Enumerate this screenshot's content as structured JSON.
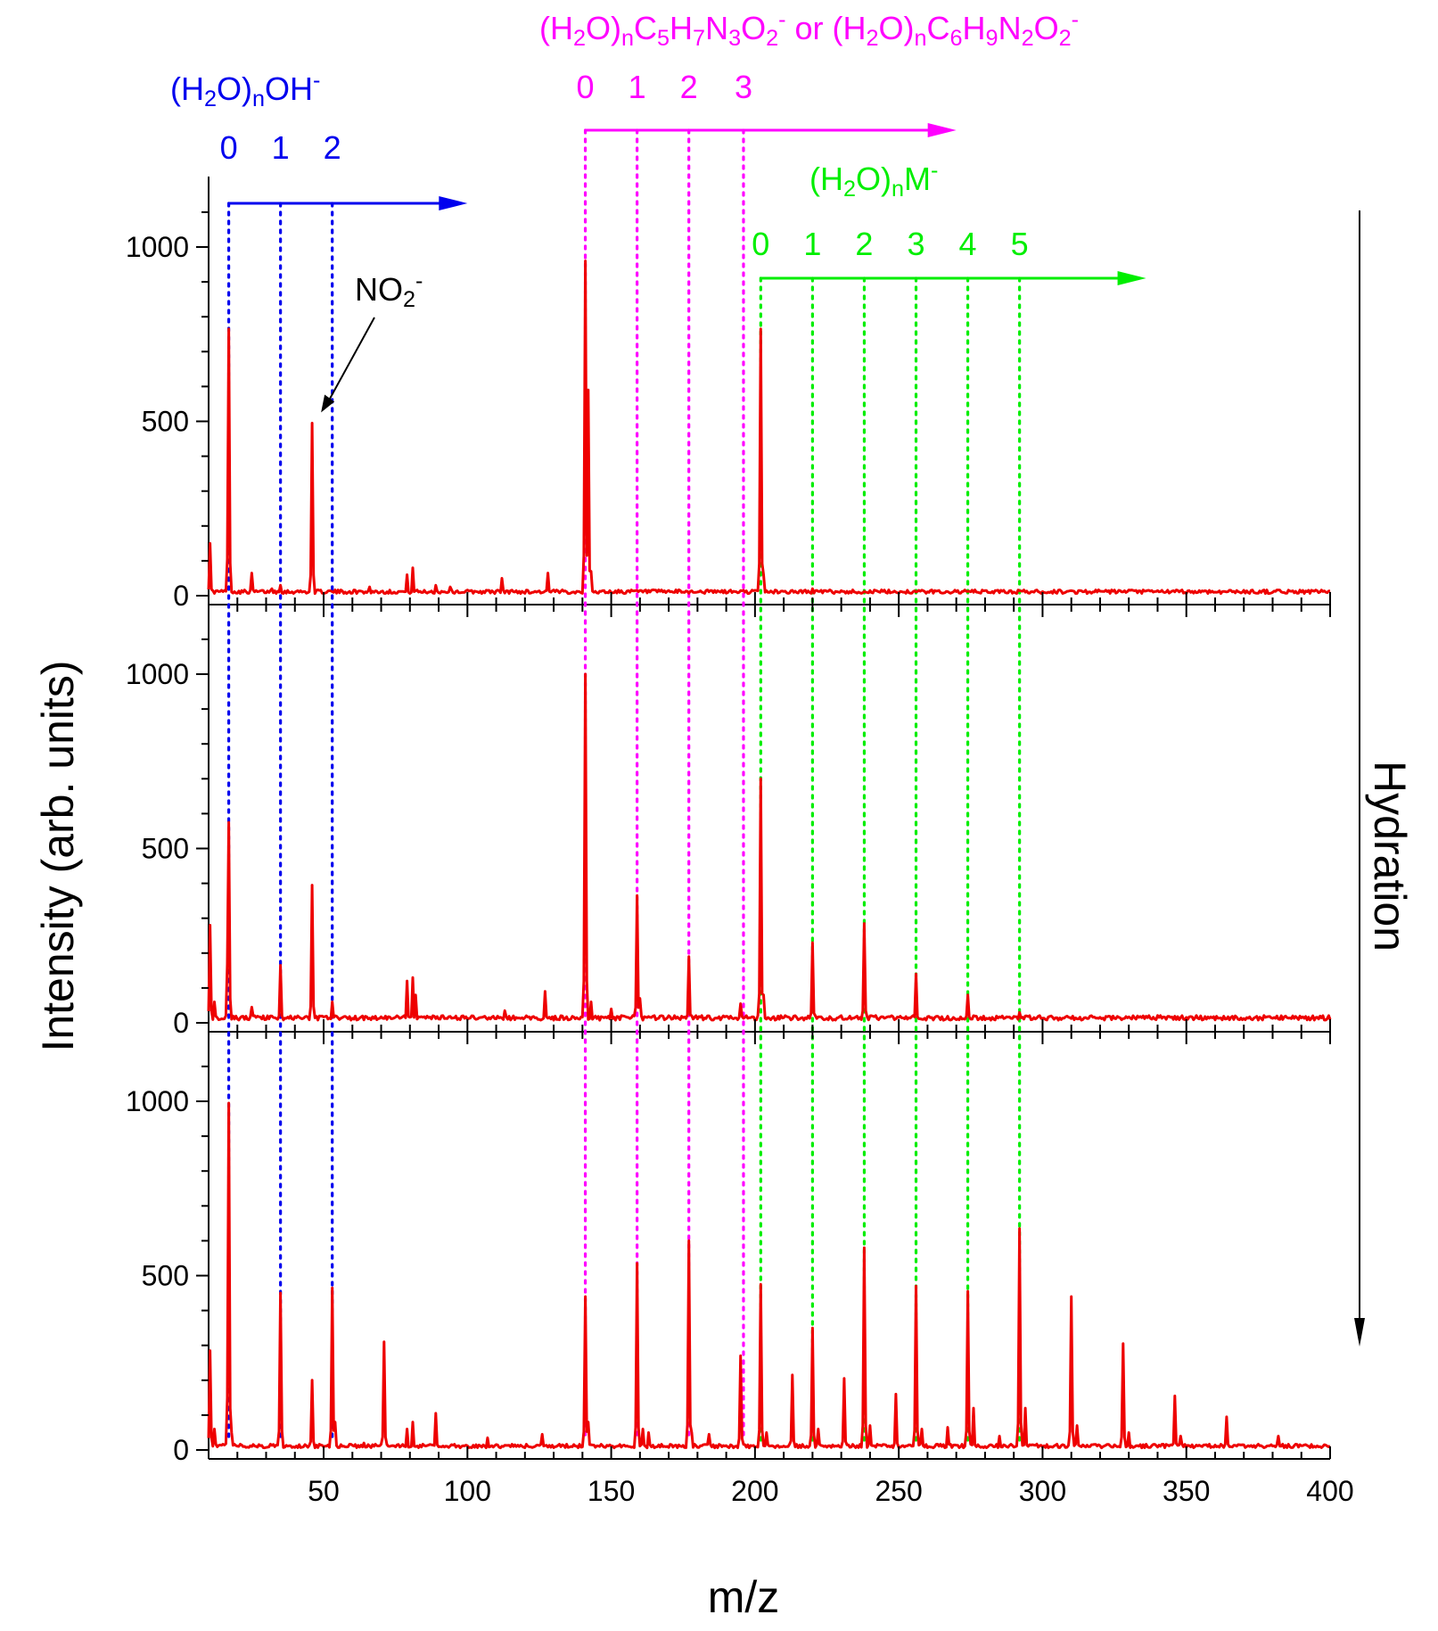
{
  "chart_data": {
    "type": "line",
    "xlabel": "m/z",
    "ylabel": "Intensity (arb. units)",
    "xlim": [
      10,
      400
    ],
    "ylim": [
      0,
      1200
    ],
    "xticks": [
      50,
      100,
      150,
      200,
      250,
      300,
      350,
      400
    ],
    "yticks": [
      0,
      500,
      1000
    ],
    "side_label": "Hydration",
    "panels": [
      {
        "name": "top",
        "baseline": 12,
        "peaks": [
          [
            10.5,
            150
          ],
          [
            16.5,
            105
          ],
          [
            17,
            765
          ],
          [
            25,
            65
          ],
          [
            32,
            20
          ],
          [
            35,
            30
          ],
          [
            46,
            495
          ],
          [
            66,
            25
          ],
          [
            79,
            60
          ],
          [
            81,
            80
          ],
          [
            89,
            30
          ],
          [
            94,
            25
          ],
          [
            112,
            50
          ],
          [
            128,
            65
          ],
          [
            141,
            960
          ],
          [
            142,
            590
          ],
          [
            143,
            70
          ],
          [
            159,
            15
          ],
          [
            202,
            765
          ],
          [
            203,
            60
          ],
          [
            220,
            20
          ]
        ]
      },
      {
        "name": "middle",
        "baseline": 15,
        "peaks": [
          [
            10.5,
            280
          ],
          [
            12,
            60
          ],
          [
            16.5,
            170
          ],
          [
            17,
            575
          ],
          [
            25,
            45
          ],
          [
            35,
            165
          ],
          [
            46,
            395
          ],
          [
            53,
            60
          ],
          [
            79,
            120
          ],
          [
            81,
            130
          ],
          [
            82,
            80
          ],
          [
            113,
            35
          ],
          [
            127,
            90
          ],
          [
            141,
            1000
          ],
          [
            143,
            60
          ],
          [
            150,
            40
          ],
          [
            159,
            365
          ],
          [
            160,
            70
          ],
          [
            177,
            190
          ],
          [
            195,
            55
          ],
          [
            202,
            700
          ],
          [
            203,
            80
          ],
          [
            220,
            230
          ],
          [
            238,
            285
          ],
          [
            256,
            140
          ],
          [
            274,
            80
          ],
          [
            292,
            30
          ]
        ]
      },
      {
        "name": "bottom",
        "baseline": 12,
        "peaks": [
          [
            10.5,
            285
          ],
          [
            12,
            60
          ],
          [
            16.5,
            150
          ],
          [
            17,
            995
          ],
          [
            18,
            50
          ],
          [
            35,
            450
          ],
          [
            46,
            200
          ],
          [
            53,
            465
          ],
          [
            54,
            80
          ],
          [
            64,
            20
          ],
          [
            71,
            310
          ],
          [
            79,
            60
          ],
          [
            81,
            80
          ],
          [
            89,
            105
          ],
          [
            107,
            35
          ],
          [
            126,
            45
          ],
          [
            141,
            440
          ],
          [
            142,
            80
          ],
          [
            159,
            535
          ],
          [
            161,
            60
          ],
          [
            163,
            50
          ],
          [
            177,
            600
          ],
          [
            178,
            50
          ],
          [
            184,
            45
          ],
          [
            195,
            270
          ],
          [
            202,
            475
          ],
          [
            204,
            50
          ],
          [
            213,
            215
          ],
          [
            220,
            350
          ],
          [
            222,
            60
          ],
          [
            231,
            205
          ],
          [
            238,
            580
          ],
          [
            240,
            70
          ],
          [
            249,
            160
          ],
          [
            256,
            470
          ],
          [
            258,
            60
          ],
          [
            267,
            65
          ],
          [
            274,
            455
          ],
          [
            276,
            120
          ],
          [
            285,
            40
          ],
          [
            292,
            635
          ],
          [
            294,
            120
          ],
          [
            310,
            440
          ],
          [
            312,
            70
          ],
          [
            328,
            305
          ],
          [
            330,
            50
          ],
          [
            346,
            155
          ],
          [
            348,
            40
          ],
          [
            364,
            95
          ],
          [
            382,
            40
          ],
          [
            398,
            15
          ]
        ]
      }
    ],
    "series": [
      {
        "name": "(H2O)nOH-",
        "color": "#0000ee",
        "label": {
          "parts": [
            "(H",
            "2",
            "O)",
            "n",
            "OH",
            "-"
          ],
          "kinds": [
            "n",
            "sub",
            "n",
            "sub",
            "n",
            "sup"
          ]
        },
        "indices": [
          "0",
          "1",
          "2"
        ],
        "positions": [
          17,
          35,
          53
        ],
        "arrow_end_mz": 100,
        "lines_to": "bottom"
      },
      {
        "name": "(H2O)nC5H7N3O2- or (H2O)nC6H9N2O2-",
        "color": "#ff00ff",
        "label": {
          "parts": [
            "(H",
            "2",
            "O)",
            "n",
            "C",
            "5",
            "H",
            "7",
            "N",
            "3",
            "O",
            "2",
            "-",
            " or (H",
            "2",
            "O)",
            "n",
            "C",
            "6",
            "H",
            "9",
            "N",
            "2",
            "O",
            "2",
            "-"
          ],
          "kinds": [
            "n",
            "sub",
            "n",
            "sub",
            "n",
            "sub",
            "n",
            "sub",
            "n",
            "sub",
            "n",
            "sub",
            "sup",
            "n",
            "sub",
            "n",
            "sub",
            "n",
            "sub",
            "n",
            "sub",
            "n",
            "sub",
            "n",
            "sub",
            "sup"
          ]
        },
        "indices": [
          "0",
          "1",
          "2",
          "3"
        ],
        "positions": [
          141,
          159,
          177,
          196
        ],
        "arrow_end_mz": 270,
        "lines_to": "bottom"
      },
      {
        "name": "(H2O)nM-",
        "color": "#00ee00",
        "label": {
          "parts": [
            "(H",
            "2",
            "O)",
            "n",
            "M",
            "-"
          ],
          "kinds": [
            "n",
            "sub",
            "n",
            "sub",
            "n",
            "sup"
          ]
        },
        "indices": [
          "0",
          "1",
          "2",
          "3",
          "4",
          "5"
        ],
        "positions": [
          202,
          220,
          238,
          256,
          274,
          292
        ],
        "arrow_end_mz": 336,
        "lines_to": "bottom"
      }
    ],
    "annotation": {
      "parts": [
        "NO",
        "2",
        "-"
      ],
      "kinds": [
        "n",
        "sub",
        "sup"
      ],
      "target_mz": 46,
      "target_value": 500,
      "panel": "top"
    }
  }
}
